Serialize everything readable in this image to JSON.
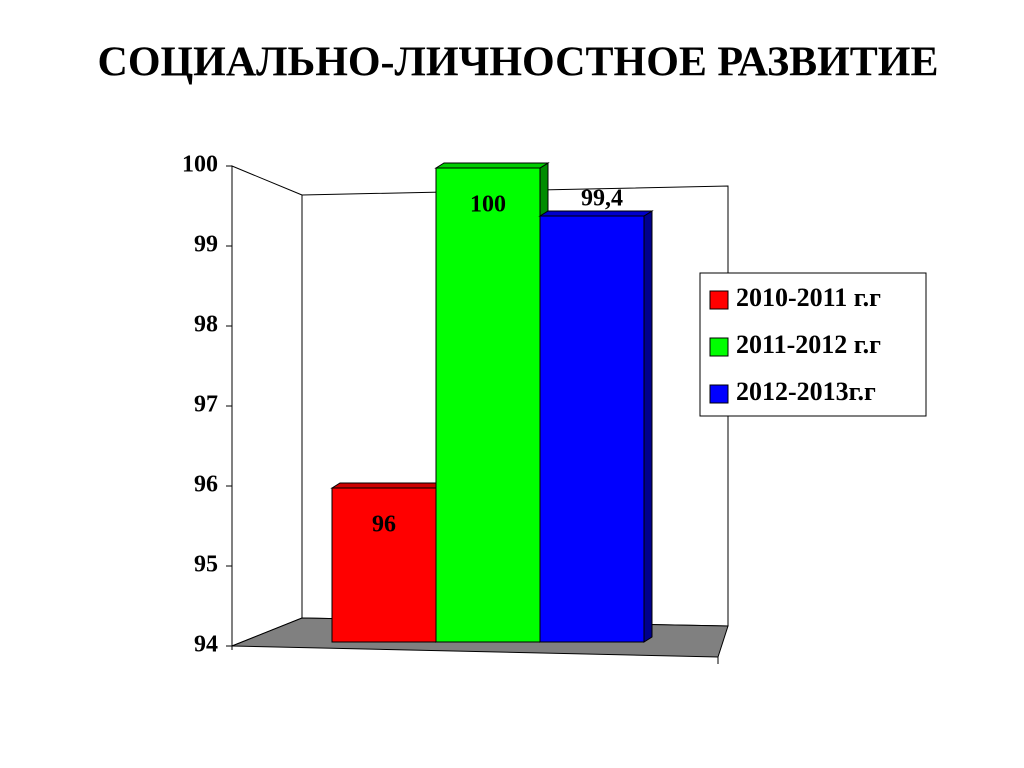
{
  "chart_data": {
    "type": "bar3d",
    "title": "СОЦИАЛЬНО-ЛИЧНОСТНОЕ РАЗВИТИЕ",
    "categories": [
      null
    ],
    "series": [
      {
        "name": "2010-2011 г.г",
        "color": "#ff0000",
        "values": [
          96
        ],
        "value_labels": [
          "96"
        ]
      },
      {
        "name": "2011-2012 г.г",
        "color": "#00ff00",
        "values": [
          100
        ],
        "value_labels": [
          "100"
        ]
      },
      {
        "name": "2012-2013г.г",
        "color": "#0000ff",
        "values": [
          99.4
        ],
        "value_labels": [
          "99,4"
        ]
      }
    ],
    "ylim": [
      94,
      100
    ],
    "yticks": [
      94,
      95,
      96,
      97,
      98,
      99,
      100
    ],
    "legend": "right"
  }
}
